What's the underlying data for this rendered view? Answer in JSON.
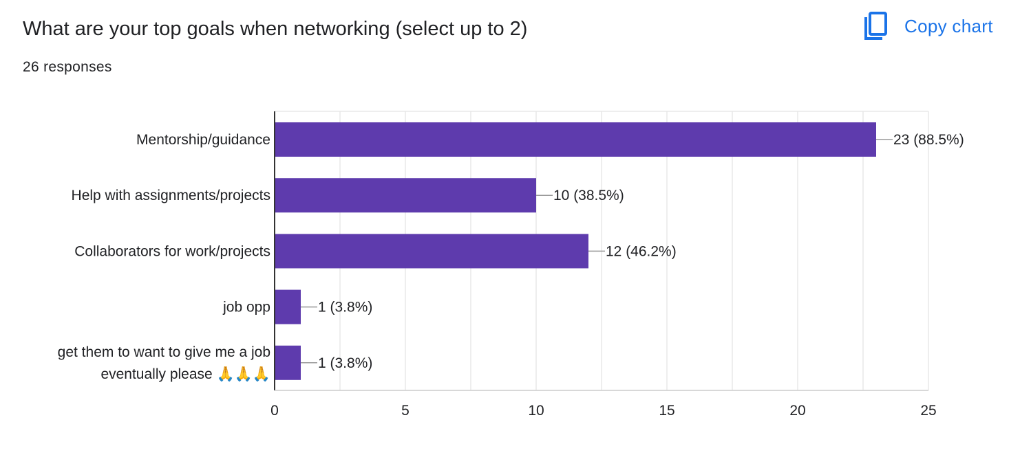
{
  "header": {
    "title": "What are your top goals when networking (select up to 2)",
    "response_count": "26 responses",
    "copy_chart_label": "Copy chart",
    "copy_icon": "copy-icon"
  },
  "colors": {
    "bar": "#5e3bad",
    "title": "#202124",
    "accent": "#1a73e8",
    "grid": "#e8e8e8",
    "axis": "#333333",
    "leader": "#999999"
  },
  "chart_data": {
    "type": "bar",
    "orientation": "horizontal",
    "categories": [
      [
        "Mentorship/guidance"
      ],
      [
        "Help with assignments/projects"
      ],
      [
        "Collaborators for work/projects"
      ],
      [
        "job opp"
      ],
      [
        "get them to want to give me a job",
        "eventually please 🙏🙏🙏"
      ]
    ],
    "values": [
      23,
      10,
      12,
      1,
      1
    ],
    "data_labels": [
      "23 (88.5%)",
      "10 (38.5%)",
      "12 (46.2%)",
      "1 (3.8%)",
      "1 (3.8%)"
    ],
    "xlim": [
      0,
      25
    ],
    "xticks": [
      0,
      5,
      10,
      15,
      20,
      25
    ],
    "grid": true,
    "legend": "none"
  }
}
